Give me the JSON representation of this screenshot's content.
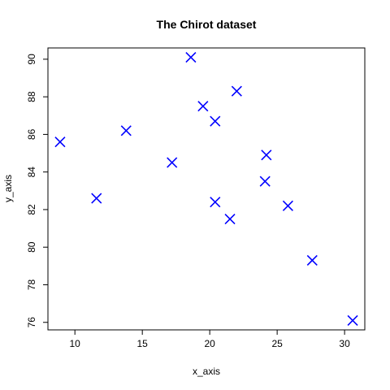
{
  "chart_data": {
    "type": "scatter",
    "title": "The Chirot dataset",
    "xlabel": "x_axis",
    "ylabel": "y_axis",
    "xlim": [
      8.0,
      31.5
    ],
    "ylim": [
      75.6,
      90.6
    ],
    "x_ticks": [
      10,
      15,
      20,
      25,
      30
    ],
    "y_ticks": [
      76,
      78,
      80,
      82,
      84,
      86,
      88,
      90
    ],
    "marker": "x",
    "marker_color": "#0000FF",
    "grid": false,
    "points": [
      {
        "x": 8.9,
        "y": 85.6
      },
      {
        "x": 11.6,
        "y": 82.6
      },
      {
        "x": 13.8,
        "y": 86.2
      },
      {
        "x": 17.2,
        "y": 84.5
      },
      {
        "x": 18.6,
        "y": 90.1
      },
      {
        "x": 19.5,
        "y": 87.5
      },
      {
        "x": 20.4,
        "y": 86.7
      },
      {
        "x": 20.4,
        "y": 82.4
      },
      {
        "x": 21.5,
        "y": 81.5
      },
      {
        "x": 22.0,
        "y": 88.3
      },
      {
        "x": 24.1,
        "y": 83.5
      },
      {
        "x": 24.2,
        "y": 84.9
      },
      {
        "x": 25.8,
        "y": 82.2
      },
      {
        "x": 27.6,
        "y": 79.3
      },
      {
        "x": 30.6,
        "y": 76.1
      }
    ]
  }
}
